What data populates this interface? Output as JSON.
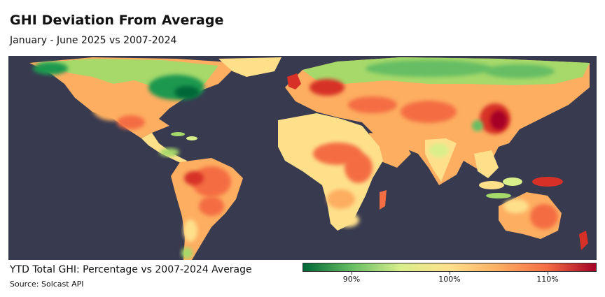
{
  "title": "GHI Deviation From Average",
  "subtitle": "January - June 2025 vs 2007-2024",
  "caption": "YTD Total GHI: Percentage vs 2007-2024 Average",
  "source": "Source: Solcast API",
  "legend": {
    "ticks": [
      "90%",
      "100%",
      "110%"
    ],
    "tick_values": [
      90,
      100,
      110
    ],
    "range": [
      85,
      115
    ],
    "colors": [
      "#006837",
      "#66bd63",
      "#d9ef8b",
      "#fee08b",
      "#fdae61",
      "#f46d43",
      "#a50026"
    ]
  },
  "ocean_color": "#383a50"
}
